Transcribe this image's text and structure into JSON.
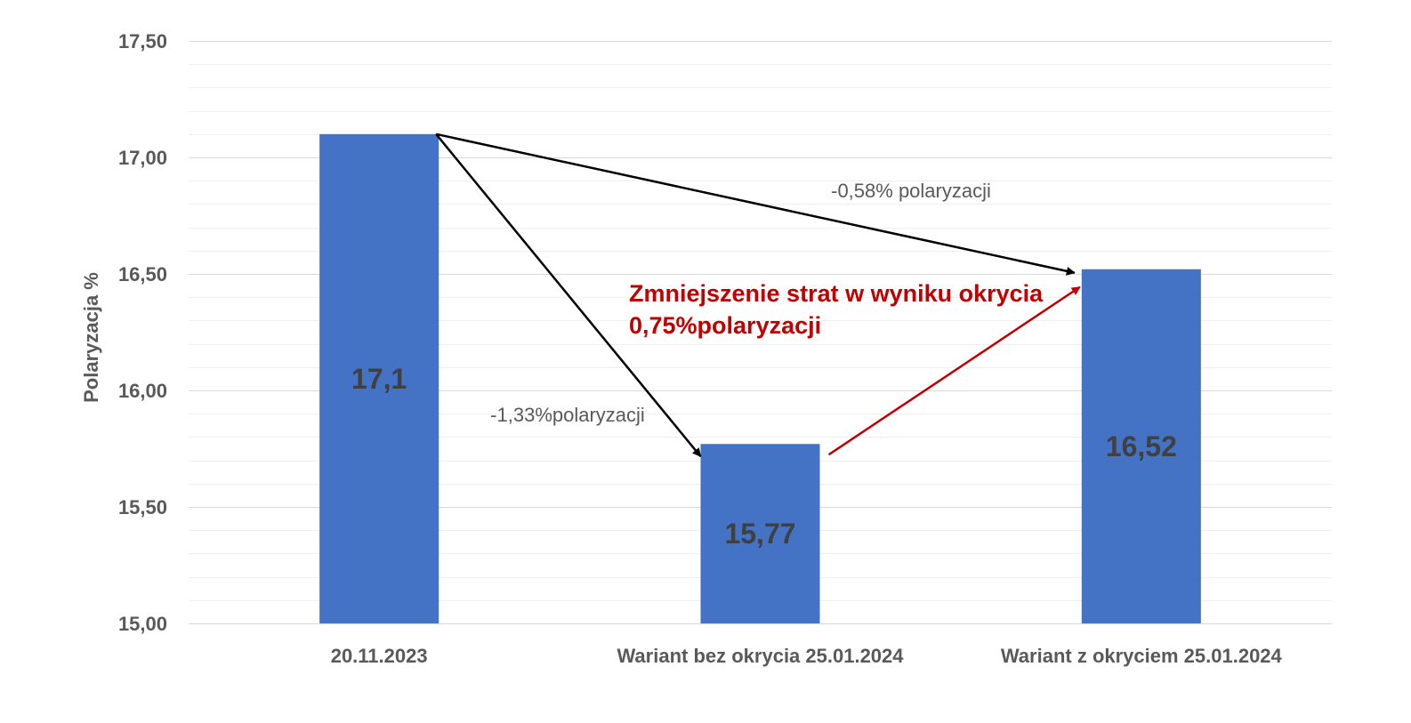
{
  "chart_data": {
    "type": "bar",
    "categories": [
      "20.11.2023",
      "Wariant bez okrycia 25.01.2024",
      "Wariant z okryciem 25.01.2024"
    ],
    "values": [
      17.1,
      15.77,
      16.52
    ],
    "data_labels": [
      "17,1",
      "15,77",
      "16,52"
    ],
    "ylabel": "Polaryzacja %",
    "ylim": [
      15.0,
      17.5
    ],
    "yticks": [
      15.0,
      15.5,
      16.0,
      16.5,
      17.0,
      17.5
    ],
    "ytick_labels": [
      "15,00",
      "15,50",
      "16,00",
      "16,50",
      "17,00",
      "17,50"
    ],
    "grid": true,
    "colors": {
      "bar": "#4472C4",
      "grid_major": "#D9D9D9",
      "grid_minor": "#EFEFEF",
      "arrow_black": "#000000",
      "arrow_red": "#C00000"
    },
    "annotations": [
      {
        "id": "drop-without-cover",
        "text": "-1,33%polaryzacji",
        "from_category": 0,
        "to_category": 1
      },
      {
        "id": "drop-with-cover",
        "text": "-0,58% polaryzacji",
        "from_category": 0,
        "to_category": 2
      },
      {
        "id": "loss-reduction",
        "lines": [
          "Zmniejszenie strat w wyniku okrycia",
          "0,75%polaryzacji"
        ],
        "from_category": 1,
        "to_category": 2
      }
    ]
  }
}
